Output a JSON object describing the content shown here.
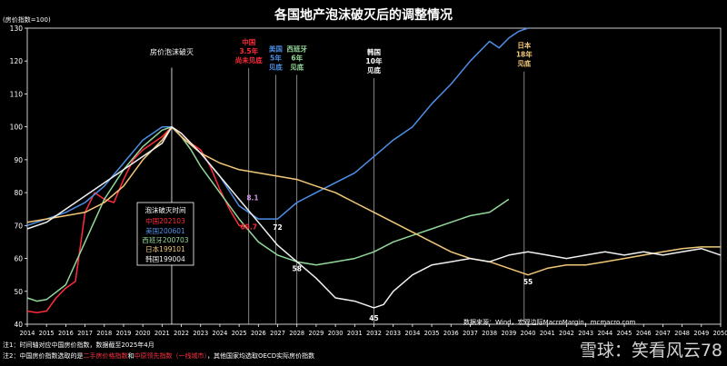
{
  "chart_data": {
    "type": "line",
    "title": "各国地产泡沫破灭后的调整情况",
    "ylabel": "(房价指数=100)",
    "ylim": [
      40,
      130
    ],
    "yticks": [
      40,
      50,
      60,
      70,
      80,
      90,
      100,
      110,
      120,
      130
    ],
    "xlim": [
      2014,
      2050
    ],
    "xticks": [
      2014,
      2015,
      2016,
      2017,
      2018,
      2019,
      2020,
      2021,
      2022,
      2023,
      2024,
      2025,
      2026,
      2027,
      2028,
      2029,
      2030,
      2031,
      2032,
      2033,
      2034,
      2035,
      2036,
      2037,
      2038,
      2039,
      2040,
      2041,
      2042,
      2043,
      2044,
      2045,
      2046,
      2047,
      2048,
      2049,
      2050
    ],
    "peak_label": "房价泡沫破灭",
    "peak_x": 2021.5,
    "series": [
      {
        "name": "中国202103",
        "color": "#ff2b3a",
        "x": [
          2014,
          2014.5,
          2015,
          2015.5,
          2016,
          2016.5,
          2017,
          2017.5,
          2018,
          2018.5,
          2019,
          2019.5,
          2020,
          2020.5,
          2021,
          2021.5,
          2022,
          2022.5,
          2023,
          2023.5,
          2024,
          2024.5,
          2025,
          2025.3
        ],
        "y": [
          44,
          43.5,
          44,
          48,
          51,
          53,
          74,
          80,
          78,
          77,
          84,
          90,
          93,
          95,
          97,
          100,
          98,
          95,
          93,
          88,
          81,
          75,
          70,
          69.7
        ]
      },
      {
        "name": "美国200601",
        "color": "#4d8fe6",
        "x": [
          2014,
          2015,
          2016,
          2017,
          2018,
          2019,
          2020,
          2021,
          2021.5,
          2022,
          2023,
          2024,
          2025,
          2026,
          2027,
          2028,
          2029,
          2030,
          2031,
          2032,
          2033,
          2034,
          2035,
          2036,
          2037,
          2038,
          2038.5,
          2039,
          2039.5,
          2040
        ],
        "y": [
          70,
          72,
          74,
          77,
          82,
          89,
          96,
          100,
          100,
          97,
          92,
          85,
          76,
          72,
          72,
          77,
          80,
          83,
          86,
          91,
          96,
          100,
          107,
          113,
          120,
          126,
          124,
          127,
          129,
          130
        ]
      },
      {
        "name": "西班牙200703",
        "color": "#93d89a",
        "x": [
          2014,
          2014.5,
          2015,
          2016,
          2017,
          2018,
          2019,
          2020,
          2021,
          2021.5,
          2022,
          2022.5,
          2023,
          2024,
          2025,
          2026,
          2027,
          2028,
          2029,
          2030,
          2031,
          2032,
          2033,
          2034,
          2035,
          2036,
          2037,
          2038,
          2038.5,
          2039
        ],
        "y": [
          48,
          47,
          47.5,
          52,
          65,
          78,
          87,
          94,
          99,
          100,
          97,
          93,
          88,
          80,
          72,
          65,
          61,
          59,
          58,
          59,
          60,
          62,
          65,
          67,
          69,
          71,
          73,
          74,
          76,
          78
        ]
      },
      {
        "name": "日本199101",
        "color": "#f2c879",
        "x": [
          2014,
          2015,
          2016,
          2017,
          2018,
          2019,
          2020,
          2021,
          2021.5,
          2022,
          2023,
          2024,
          2025,
          2026,
          2027,
          2028,
          2029,
          2030,
          2031,
          2032,
          2033,
          2034,
          2035,
          2036,
          2037,
          2038,
          2039,
          2040,
          2041,
          2042,
          2043,
          2044,
          2045,
          2046,
          2047,
          2048,
          2049,
          2050
        ],
        "y": [
          71,
          72,
          73,
          74,
          77,
          82,
          90,
          96,
          100,
          97,
          92,
          89,
          87,
          86,
          85,
          84,
          82,
          80,
          77,
          74,
          71,
          68,
          65,
          62,
          60,
          59,
          57,
          55,
          57,
          58,
          58,
          59,
          60,
          61,
          62,
          63,
          63.5,
          63.5
        ]
      },
      {
        "name": "韩国199004",
        "color": "#f0f0f0",
        "x": [
          2014,
          2015,
          2016,
          2017,
          2018,
          2019,
          2020,
          2021,
          2021.5,
          2022,
          2023,
          2024,
          2025,
          2026,
          2027,
          2028,
          2029,
          2030,
          2031,
          2032,
          2032.5,
          2033,
          2034,
          2035,
          2036,
          2037,
          2038,
          2039,
          2040,
          2041,
          2042,
          2043,
          2044,
          2045,
          2046,
          2047,
          2048,
          2049,
          2050
        ],
        "y": [
          69,
          71,
          75,
          79,
          83,
          87,
          91,
          95,
          100,
          98,
          92,
          85,
          78,
          71,
          64,
          59,
          54,
          48,
          47,
          45,
          46,
          50,
          55,
          58,
          59,
          60,
          59,
          61,
          62,
          61,
          60,
          61,
          62,
          61,
          62,
          61,
          62,
          63,
          61
        ]
      }
    ],
    "end_labels": [
      {
        "text": "69.7",
        "x": 2025.5,
        "y": 69.7,
        "color": "#ff2b3a"
      },
      {
        "text": "72",
        "x": 2027,
        "y": 69.5,
        "color": "#ffffff"
      },
      {
        "text": "58",
        "x": 2028,
        "y": 57,
        "color": "#ffffff"
      },
      {
        "text": "45",
        "x": 2032,
        "y": 42,
        "color": "#ffffff"
      },
      {
        "text": "55",
        "x": 2040,
        "y": 53,
        "color": "#ffffff"
      },
      {
        "text": "8.1",
        "x": 2025.7,
        "y": 78.5,
        "color": "#c98fe0"
      }
    ],
    "annotations": [
      {
        "x": 2025.5,
        "lines": [
          "中国",
          "3.5年",
          "尚未见底"
        ],
        "color": "#ff2b3a",
        "top": 125
      },
      {
        "x": 2026.9,
        "lines": [
          "美国",
          "5年",
          "见底"
        ],
        "color": "#4d8fe6",
        "top": 123
      },
      {
        "x": 2028.0,
        "lines": [
          "西班牙",
          "6年",
          "见底"
        ],
        "color": "#93d89a",
        "top": 123
      },
      {
        "x": 2032.0,
        "lines": [
          "韩国",
          "10年",
          "见底"
        ],
        "color": "#ffffff",
        "top": 122
      },
      {
        "x": 2039.8,
        "lines": [
          "日本",
          "18年",
          "见底"
        ],
        "color": "#f2c879",
        "top": 124
      }
    ],
    "legend_title": "泡沫破灭时间",
    "source": "数据来源：Wind，宏观边际MacroMargin，mcmacro.com",
    "note1": "注1：时间轴对应中国房价指数，数据截至2025年4月",
    "note2_prefix": "注2：中国房价指数选取的是",
    "note2_red1": "二手房价格指数",
    "note2_mid": "和",
    "note2_red2": "中原领先指数（一线城市）",
    "note2_suffix": "，其他国家均选取OECD实际房价指数",
    "watermark": "雪球：笑看风云78"
  }
}
